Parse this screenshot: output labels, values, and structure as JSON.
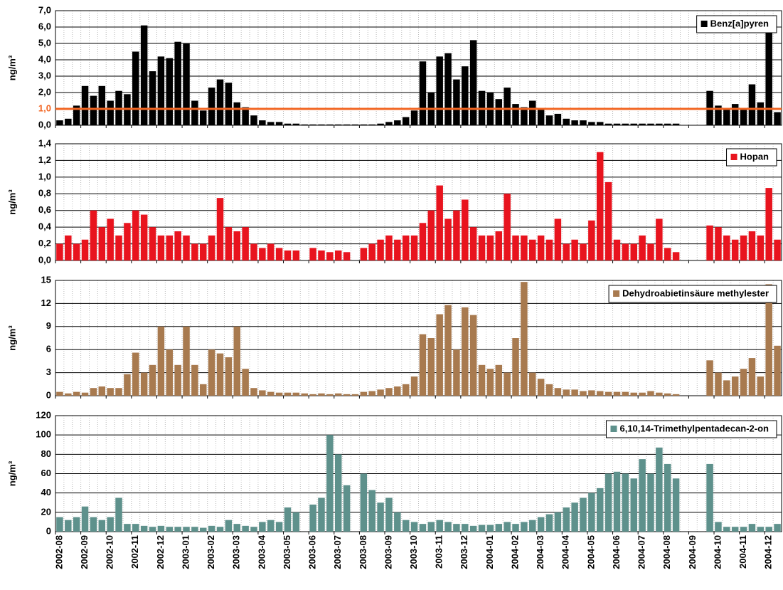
{
  "chart_data": [
    {
      "type": "bar",
      "ylabel": "ng/m³",
      "ylim": [
        0,
        7
      ],
      "grid": true,
      "legend": "upper right",
      "yticks": [
        {
          "value": 0,
          "label": "0,0"
        },
        {
          "value": 1,
          "label": "1,0"
        },
        {
          "value": 2,
          "label": "2,0"
        },
        {
          "value": 3,
          "label": "3,0"
        },
        {
          "value": 4,
          "label": "4,0"
        },
        {
          "value": 5,
          "label": "5,0"
        },
        {
          "value": 6,
          "label": "6,0"
        },
        {
          "value": 7,
          "label": "7,0"
        }
      ],
      "hline": {
        "value": 1,
        "color": "#f26522"
      },
      "series": [
        {
          "name": "Benz[a]pyren",
          "color": "#000000",
          "values": [
            0.3,
            0.4,
            1.2,
            2.4,
            1.8,
            2.4,
            1.5,
            2.1,
            1.9,
            4.5,
            6.1,
            3.3,
            4.2,
            4.1,
            5.1,
            5.0,
            1.5,
            0.9,
            2.3,
            2.8,
            2.6,
            1.4,
            1.1,
            0.6,
            0.3,
            0.2,
            0.2,
            0.1,
            0.1,
            0.05,
            0.05,
            0.05,
            0.05,
            0.05,
            0.05,
            0.05,
            0.05,
            0.05,
            0.1,
            0.2,
            0.3,
            0.5,
            0.9,
            3.9,
            2.0,
            4.2,
            4.4,
            2.8,
            3.6,
            5.2,
            2.1,
            2.0,
            1.6,
            2.3,
            1.3,
            1.1,
            1.5,
            1.0,
            0.6,
            0.7,
            0.4,
            0.3,
            0.3,
            0.2,
            0.2,
            0.1,
            0.1,
            0.1,
            0.1,
            0.1,
            0.1,
            0.1,
            0.1,
            0.1,
            null,
            null,
            null,
            2.1,
            1.2,
            1.0,
            1.3,
            1.0,
            2.5,
            1.4,
            5.7,
            0.8
          ]
        }
      ]
    },
    {
      "type": "bar",
      "ylabel": "ng/m³",
      "ylim": [
        0,
        1.4
      ],
      "grid": true,
      "legend": "upper right",
      "yticks": [
        {
          "value": 0,
          "label": "0,0"
        },
        {
          "value": 0.2,
          "label": "0,2"
        },
        {
          "value": 0.4,
          "label": "0,4"
        },
        {
          "value": 0.6,
          "label": "0,6"
        },
        {
          "value": 0.8,
          "label": "0,8"
        },
        {
          "value": 1,
          "label": "1,0"
        },
        {
          "value": 1.2,
          "label": "1,2"
        },
        {
          "value": 1.4,
          "label": "1,4"
        }
      ],
      "series": [
        {
          "name": "Hopan",
          "color": "#e8141e",
          "values": [
            0.2,
            0.3,
            0.2,
            0.25,
            0.6,
            0.4,
            0.5,
            0.3,
            0.45,
            0.6,
            0.55,
            0.4,
            0.3,
            0.3,
            0.35,
            0.3,
            0.2,
            0.2,
            0.3,
            0.75,
            0.4,
            0.35,
            0.4,
            0.2,
            0.15,
            0.2,
            0.15,
            0.12,
            0.12,
            null,
            0.15,
            0.12,
            0.1,
            0.12,
            0.1,
            null,
            0.15,
            0.2,
            0.25,
            0.3,
            0.25,
            0.3,
            0.3,
            0.45,
            0.6,
            0.9,
            0.5,
            0.6,
            0.73,
            0.4,
            0.3,
            0.3,
            0.35,
            0.8,
            0.3,
            0.3,
            0.25,
            0.3,
            0.25,
            0.5,
            0.2,
            0.25,
            0.2,
            0.48,
            1.3,
            0.94,
            0.25,
            0.2,
            0.2,
            0.3,
            0.2,
            0.5,
            0.15,
            0.1,
            null,
            null,
            null,
            0.42,
            0.4,
            0.3,
            0.25,
            0.3,
            0.35,
            0.3,
            0.87,
            0.25
          ]
        }
      ]
    },
    {
      "type": "bar",
      "ylabel": "ng/m³",
      "ylim": [
        0,
        15
      ],
      "grid": true,
      "legend": "upper right",
      "yticks": [
        0,
        3,
        6,
        9,
        12,
        15
      ],
      "series": [
        {
          "name": "Dehydroabietinsäure methylester",
          "color": "#a87a4f",
          "values": [
            0.5,
            0.3,
            0.5,
            0.4,
            1.0,
            1.2,
            1.0,
            1.0,
            2.8,
            5.6,
            3.0,
            4.0,
            9.0,
            6.0,
            4.0,
            9.0,
            4.0,
            1.5,
            6.0,
            5.5,
            5.0,
            9.0,
            3.5,
            1.0,
            0.7,
            0.5,
            0.4,
            0.4,
            0.4,
            0.3,
            0.2,
            0.3,
            0.2,
            0.3,
            0.2,
            0.2,
            0.5,
            0.6,
            0.8,
            1.0,
            1.2,
            1.5,
            2.5,
            8.0,
            7.5,
            10.6,
            11.8,
            6.0,
            11.5,
            10.5,
            4.0,
            3.5,
            4.0,
            3.0,
            7.5,
            14.8,
            3.0,
            2.2,
            1.5,
            1.0,
            0.8,
            0.8,
            0.6,
            0.7,
            0.6,
            0.5,
            0.5,
            0.5,
            0.4,
            0.4,
            0.6,
            0.4,
            0.3,
            0.2,
            null,
            null,
            null,
            4.6,
            3.0,
            2.0,
            2.5,
            3.5,
            4.9,
            2.5,
            14.5,
            6.5
          ]
        }
      ]
    },
    {
      "type": "bar",
      "ylabel": "ng/m³",
      "ylim": [
        0,
        120
      ],
      "grid": true,
      "legend": "upper right",
      "yticks": [
        0,
        20,
        40,
        60,
        80,
        100,
        120
      ],
      "categories": [
        "2002-08",
        null,
        null,
        "2002-09",
        null,
        null,
        "2002-10",
        null,
        null,
        "2002-11",
        null,
        null,
        "2002-12",
        null,
        null,
        "2003-01",
        null,
        null,
        "2003-02",
        null,
        null,
        "2003-03",
        null,
        null,
        "2003-04",
        null,
        null,
        "2003-05",
        null,
        null,
        "2003-06",
        null,
        null,
        "2003-07",
        null,
        null,
        "2003-08",
        null,
        null,
        "2003-09",
        null,
        null,
        "2003-10",
        null,
        null,
        "2003-11",
        null,
        null,
        "2003-12",
        null,
        null,
        "2004-01",
        null,
        null,
        "2004-02",
        null,
        null,
        "2004-03",
        null,
        null,
        "2004-04",
        null,
        null,
        "2004-05",
        null,
        null,
        "2004-06",
        null,
        null,
        "2004-07",
        null,
        null,
        "2004-08",
        null,
        null,
        "2004-09",
        null,
        null,
        "2004-10",
        null,
        null,
        "2004-11",
        null,
        null,
        "2004-12",
        null
      ],
      "series": [
        {
          "name": "6,10,14-Trimethylpentadecan-2-on",
          "color": "#5e918c",
          "values": [
            15,
            12,
            15,
            26,
            15,
            12,
            15,
            35,
            8,
            8,
            6,
            5,
            6,
            5,
            5,
            5,
            5,
            4,
            6,
            5,
            12,
            8,
            6,
            5,
            10,
            12,
            10,
            25,
            20,
            null,
            28,
            35,
            100,
            80,
            48,
            null,
            60,
            43,
            30,
            35,
            20,
            12,
            10,
            8,
            10,
            12,
            10,
            8,
            8,
            6,
            7,
            7,
            8,
            10,
            8,
            10,
            12,
            15,
            18,
            20,
            25,
            30,
            35,
            40,
            45,
            60,
            62,
            60,
            55,
            75,
            60,
            87,
            70,
            55,
            null,
            null,
            null,
            70,
            10,
            5,
            5,
            5,
            8,
            5,
            5,
            8
          ]
        }
      ]
    }
  ]
}
